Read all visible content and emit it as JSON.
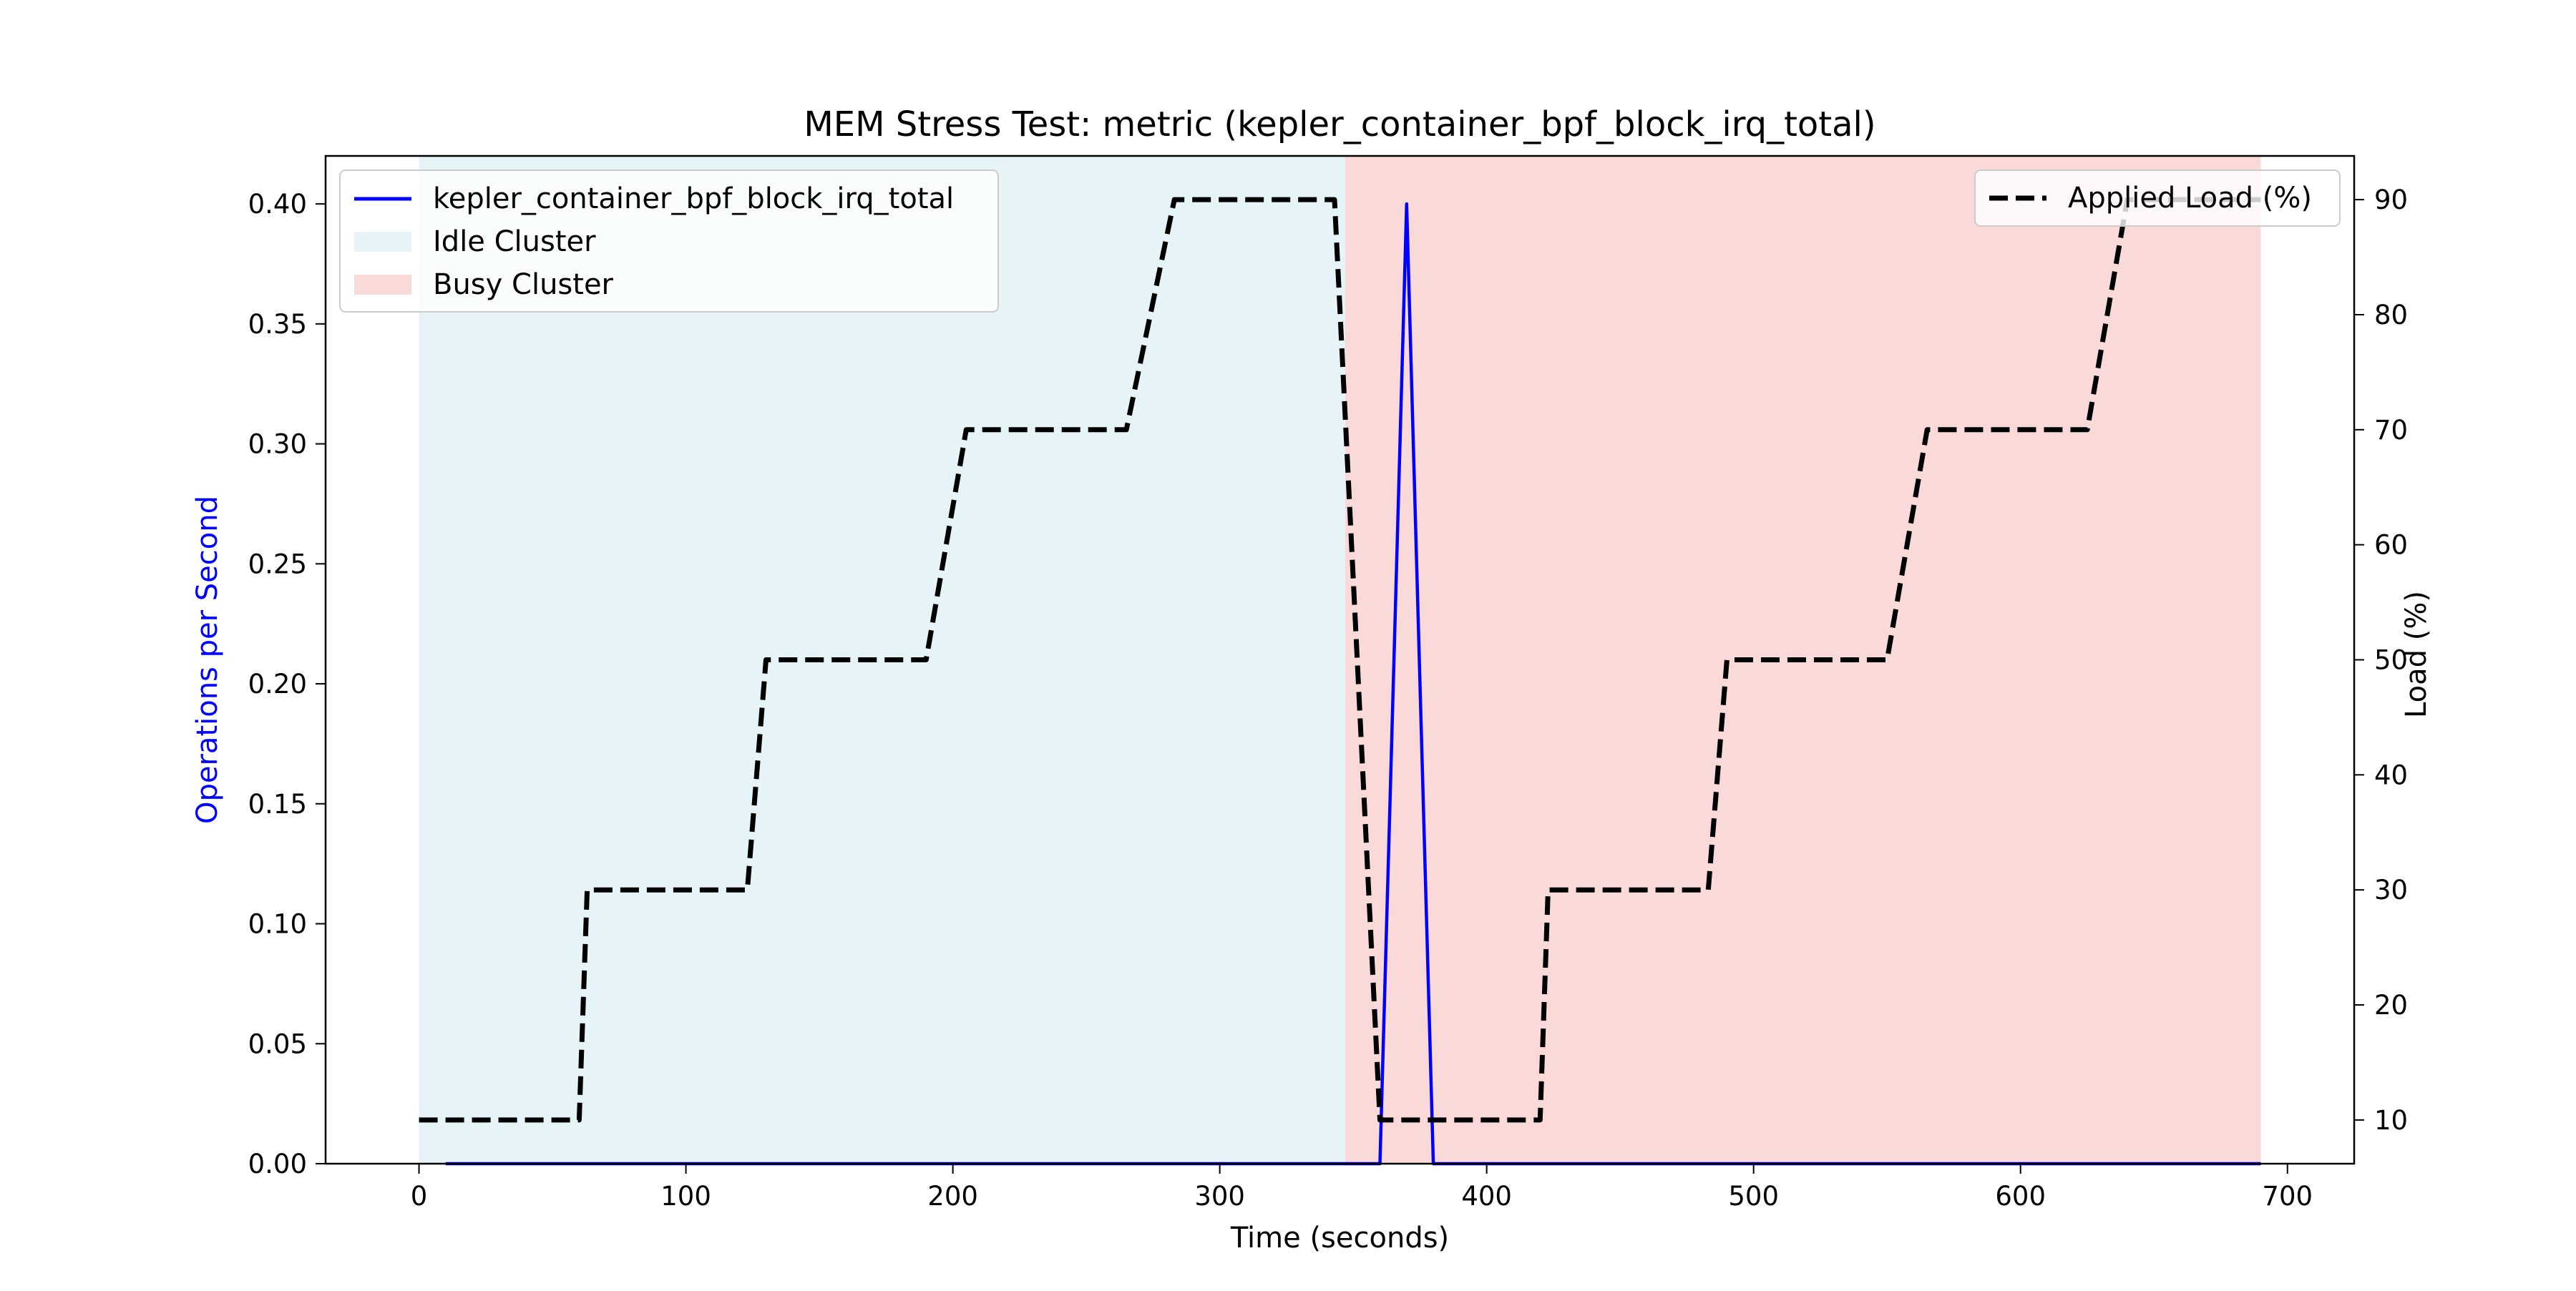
{
  "chart_data": {
    "type": "line",
    "title": "MEM Stress Test: metric (kepler_container_bpf_block_irq_total)",
    "xlabel": "Time (seconds)",
    "ylabel_left": "Operations per Second",
    "ylabel_right": "Load (%)",
    "xlim": [
      -35,
      725
    ],
    "ylim_left": [
      0,
      0.42
    ],
    "ylim_right": [
      6.2,
      93.8
    ],
    "x_ticks": [
      0,
      100,
      200,
      300,
      400,
      500,
      600,
      700
    ],
    "y_left_ticks": [
      0.0,
      0.05,
      0.1,
      0.15,
      0.2,
      0.25,
      0.3,
      0.35,
      0.4
    ],
    "y_right_ticks": [
      10,
      20,
      30,
      40,
      50,
      60,
      70,
      80,
      90
    ],
    "grid": false,
    "regions": [
      {
        "name": "Idle Cluster",
        "x_start": 0,
        "x_end": 347,
        "color": "#add8e6"
      },
      {
        "name": "Busy Cluster",
        "x_start": 347,
        "x_end": 690,
        "color": "#f08080"
      }
    ],
    "series": [
      {
        "name": "kepler_container_bpf_block_irq_total",
        "axis": "left",
        "color": "#0000ff",
        "style": "solid",
        "x": [
          10,
          360,
          370,
          380,
          690
        ],
        "y": [
          0.0,
          0.0,
          0.4,
          0.0,
          0.0
        ]
      },
      {
        "name": "Applied Load (%)",
        "axis": "right",
        "color": "#000000",
        "style": "dashed",
        "x": [
          0,
          60,
          63,
          123,
          130,
          190,
          205,
          265,
          283,
          343,
          360,
          420,
          423,
          483,
          490,
          550,
          565,
          625,
          640,
          690
        ],
        "y": [
          10,
          10,
          30,
          30,
          50,
          50,
          70,
          70,
          90,
          90,
          10,
          10,
          30,
          30,
          50,
          50,
          70,
          70,
          90,
          90
        ]
      }
    ],
    "legends": {
      "left": {
        "placement": "upper-left",
        "entries": [
          "kepler_container_bpf_block_irq_total",
          "Idle Cluster",
          "Busy Cluster"
        ]
      },
      "right": {
        "placement": "upper-right",
        "entries": [
          "Applied Load (%)"
        ]
      }
    }
  }
}
